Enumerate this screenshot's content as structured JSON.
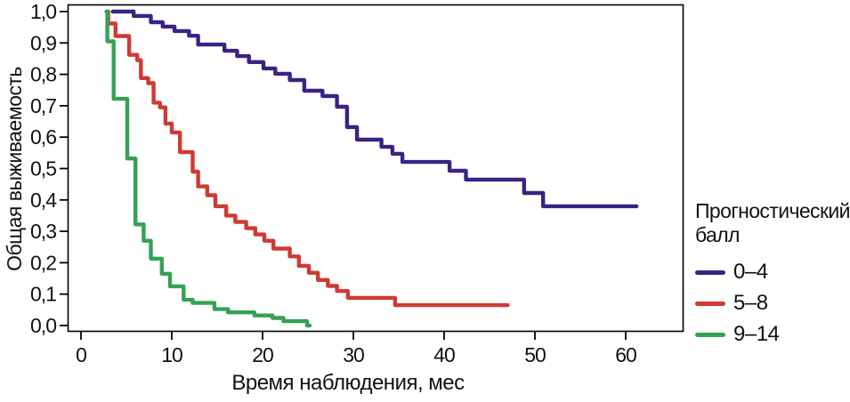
{
  "figure": {
    "background": "#ffffff",
    "axis_color": "#000000",
    "text_color": "#111111"
  },
  "legend": {
    "title": "Прогностический балл"
  },
  "chart_data": {
    "type": "line",
    "subtype": "kaplan-meier-step",
    "title": "",
    "xlabel": "Время наблюдения, мес",
    "ylabel": "Общая выживаемость",
    "legend_title": "Прогностический балл",
    "legend_position": "right",
    "grid": false,
    "xlim": [
      0,
      66
    ],
    "ylim": [
      0.0,
      1.0
    ],
    "x_ticks": [
      0,
      10,
      20,
      30,
      40,
      50,
      60
    ],
    "x_tick_labels": [
      "0",
      "10",
      "20",
      "30",
      "40",
      "50",
      "60"
    ],
    "y_ticks": [
      1.0,
      0.9,
      0.8,
      0.7,
      0.6,
      0.5,
      0.4,
      0.3,
      0.2,
      0.1,
      0.0
    ],
    "y_tick_labels": [
      "1,0",
      "0,9",
      "0,8",
      "0,7",
      "0,6",
      "0,5",
      "0,4",
      "0,3",
      "0,2",
      "0,1",
      "0,0"
    ],
    "series": [
      {
        "name": "0–4",
        "color": "#3b2383",
        "end_x": 61.2,
        "points": [
          [
            3.5,
            1.0
          ],
          [
            5.8,
            0.986
          ],
          [
            7.7,
            0.966
          ],
          [
            9.0,
            0.952
          ],
          [
            10.3,
            0.938
          ],
          [
            11.9,
            0.923
          ],
          [
            12.9,
            0.895
          ],
          [
            15.8,
            0.875
          ],
          [
            17.2,
            0.858
          ],
          [
            18.5,
            0.839
          ],
          [
            20.1,
            0.819
          ],
          [
            21.4,
            0.802
          ],
          [
            23.0,
            0.782
          ],
          [
            24.6,
            0.748
          ],
          [
            26.6,
            0.731
          ],
          [
            28.2,
            0.697
          ],
          [
            29.3,
            0.632
          ],
          [
            30.4,
            0.592
          ],
          [
            33.1,
            0.569
          ],
          [
            34.3,
            0.547
          ],
          [
            35.4,
            0.521
          ],
          [
            40.6,
            0.493
          ],
          [
            42.4,
            0.465
          ],
          [
            48.8,
            0.422
          ],
          [
            50.9,
            0.38
          ]
        ]
      },
      {
        "name": "5–8",
        "color": "#cf3a34",
        "end_x": 47.0,
        "points": [
          [
            2.8,
            1.0
          ],
          [
            3.0,
            0.962
          ],
          [
            3.8,
            0.922
          ],
          [
            5.3,
            0.862
          ],
          [
            6.2,
            0.845
          ],
          [
            6.6,
            0.788
          ],
          [
            7.4,
            0.772
          ],
          [
            8.0,
            0.71
          ],
          [
            8.7,
            0.695
          ],
          [
            9.3,
            0.643
          ],
          [
            10.0,
            0.615
          ],
          [
            10.9,
            0.552
          ],
          [
            12.3,
            0.49
          ],
          [
            12.9,
            0.443
          ],
          [
            13.9,
            0.415
          ],
          [
            14.8,
            0.38
          ],
          [
            16.0,
            0.35
          ],
          [
            17.0,
            0.33
          ],
          [
            18.2,
            0.31
          ],
          [
            19.2,
            0.29
          ],
          [
            20.2,
            0.27
          ],
          [
            21.2,
            0.245
          ],
          [
            23.0,
            0.22
          ],
          [
            24.0,
            0.19
          ],
          [
            25.1,
            0.168
          ],
          [
            26.1,
            0.145
          ],
          [
            27.2,
            0.126
          ],
          [
            28.2,
            0.11
          ],
          [
            29.4,
            0.088
          ],
          [
            34.6,
            0.065
          ]
        ]
      },
      {
        "name": "9–14",
        "color": "#35a156",
        "end_x": 25.2,
        "points": [
          [
            2.8,
            1.0
          ],
          [
            2.9,
            0.905
          ],
          [
            3.6,
            0.722
          ],
          [
            5.1,
            0.532
          ],
          [
            6.0,
            0.322
          ],
          [
            6.9,
            0.27
          ],
          [
            7.7,
            0.213
          ],
          [
            8.9,
            0.165
          ],
          [
            9.8,
            0.125
          ],
          [
            11.3,
            0.082
          ],
          [
            12.3,
            0.072
          ],
          [
            14.7,
            0.052
          ],
          [
            16.2,
            0.042
          ],
          [
            19.1,
            0.032
          ],
          [
            21.1,
            0.024
          ],
          [
            22.3,
            0.014
          ],
          [
            24.9,
            0.0
          ]
        ]
      }
    ]
  }
}
